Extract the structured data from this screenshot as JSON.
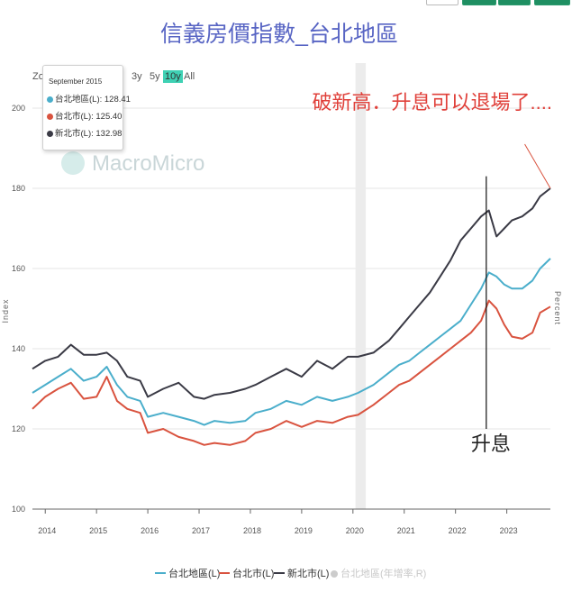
{
  "chart_data": {
    "type": "line",
    "title": "信義房價指數_台北地區",
    "ylabel": "Index",
    "y2label": "Percent",
    "ylim": [
      100,
      200
    ],
    "yticks": [
      100,
      120,
      140,
      160,
      180,
      200
    ],
    "xlim": [
      2013.75,
      2023.85
    ],
    "xticks": [
      "2014",
      "2015",
      "2016",
      "2017",
      "2018",
      "2019",
      "2020",
      "2021",
      "2022",
      "2023"
    ],
    "legend_position": "bottom",
    "highlight_band": [
      2020.05,
      2020.25
    ],
    "series": [
      {
        "name": "台北地區(L)",
        "color": "#4aaecb",
        "points": [
          [
            2013.75,
            129
          ],
          [
            2014.0,
            131
          ],
          [
            2014.25,
            133
          ],
          [
            2014.5,
            135
          ],
          [
            2014.75,
            132
          ],
          [
            2015.0,
            133
          ],
          [
            2015.2,
            135.5
          ],
          [
            2015.4,
            131
          ],
          [
            2015.6,
            128
          ],
          [
            2015.85,
            127
          ],
          [
            2016.0,
            123
          ],
          [
            2016.3,
            124
          ],
          [
            2016.6,
            123
          ],
          [
            2016.9,
            122
          ],
          [
            2017.1,
            121
          ],
          [
            2017.3,
            122
          ],
          [
            2017.6,
            121.5
          ],
          [
            2017.9,
            122
          ],
          [
            2018.1,
            124
          ],
          [
            2018.4,
            125
          ],
          [
            2018.7,
            127
          ],
          [
            2019.0,
            126
          ],
          [
            2019.3,
            128
          ],
          [
            2019.6,
            127
          ],
          [
            2019.9,
            128
          ],
          [
            2020.1,
            129
          ],
          [
            2020.4,
            131
          ],
          [
            2020.7,
            134
          ],
          [
            2020.9,
            136
          ],
          [
            2021.1,
            137
          ],
          [
            2021.3,
            139
          ],
          [
            2021.5,
            141
          ],
          [
            2021.7,
            143
          ],
          [
            2021.9,
            145
          ],
          [
            2022.1,
            147
          ],
          [
            2022.3,
            151
          ],
          [
            2022.5,
            155
          ],
          [
            2022.65,
            159
          ],
          [
            2022.8,
            158
          ],
          [
            2022.95,
            156
          ],
          [
            2023.1,
            155
          ],
          [
            2023.3,
            155
          ],
          [
            2023.5,
            157
          ],
          [
            2023.65,
            160
          ],
          [
            2023.85,
            162.5
          ]
        ]
      },
      {
        "name": "台北市(L)",
        "color": "#d9533f",
        "points": [
          [
            2013.75,
            125
          ],
          [
            2014.0,
            128
          ],
          [
            2014.25,
            130
          ],
          [
            2014.5,
            131.5
          ],
          [
            2014.75,
            127.5
          ],
          [
            2015.0,
            128
          ],
          [
            2015.2,
            133
          ],
          [
            2015.4,
            127
          ],
          [
            2015.6,
            125
          ],
          [
            2015.85,
            124
          ],
          [
            2016.0,
            119
          ],
          [
            2016.3,
            120
          ],
          [
            2016.6,
            118
          ],
          [
            2016.9,
            117
          ],
          [
            2017.1,
            116
          ],
          [
            2017.3,
            116.5
          ],
          [
            2017.6,
            116
          ],
          [
            2017.9,
            117
          ],
          [
            2018.1,
            119
          ],
          [
            2018.4,
            120
          ],
          [
            2018.7,
            122
          ],
          [
            2019.0,
            120.5
          ],
          [
            2019.3,
            122
          ],
          [
            2019.6,
            121.5
          ],
          [
            2019.9,
            123
          ],
          [
            2020.1,
            123.5
          ],
          [
            2020.4,
            126
          ],
          [
            2020.7,
            129
          ],
          [
            2020.9,
            131
          ],
          [
            2021.1,
            132
          ],
          [
            2021.3,
            134
          ],
          [
            2021.5,
            136
          ],
          [
            2021.7,
            138
          ],
          [
            2021.9,
            140
          ],
          [
            2022.1,
            142
          ],
          [
            2022.3,
            144
          ],
          [
            2022.5,
            147
          ],
          [
            2022.65,
            152
          ],
          [
            2022.8,
            150
          ],
          [
            2022.95,
            146
          ],
          [
            2023.1,
            143
          ],
          [
            2023.3,
            142.5
          ],
          [
            2023.5,
            144
          ],
          [
            2023.65,
            149
          ],
          [
            2023.85,
            150.5
          ]
        ]
      },
      {
        "name": "新北市(L)",
        "color": "#3a3a45",
        "points": [
          [
            2013.75,
            135
          ],
          [
            2014.0,
            137
          ],
          [
            2014.25,
            138
          ],
          [
            2014.5,
            141
          ],
          [
            2014.75,
            138.5
          ],
          [
            2015.0,
            138.5
          ],
          [
            2015.2,
            139
          ],
          [
            2015.4,
            137
          ],
          [
            2015.6,
            133
          ],
          [
            2015.85,
            132
          ],
          [
            2016.0,
            128
          ],
          [
            2016.3,
            130
          ],
          [
            2016.6,
            131.5
          ],
          [
            2016.9,
            128
          ],
          [
            2017.1,
            127.5
          ],
          [
            2017.3,
            128.5
          ],
          [
            2017.6,
            129
          ],
          [
            2017.9,
            130
          ],
          [
            2018.1,
            131
          ],
          [
            2018.4,
            133
          ],
          [
            2018.7,
            135
          ],
          [
            2019.0,
            133
          ],
          [
            2019.3,
            137
          ],
          [
            2019.6,
            135
          ],
          [
            2019.9,
            138
          ],
          [
            2020.1,
            138
          ],
          [
            2020.4,
            139
          ],
          [
            2020.7,
            142
          ],
          [
            2020.9,
            145
          ],
          [
            2021.1,
            148
          ],
          [
            2021.3,
            151
          ],
          [
            2021.5,
            154
          ],
          [
            2021.7,
            158
          ],
          [
            2021.9,
            162
          ],
          [
            2022.1,
            167
          ],
          [
            2022.3,
            170
          ],
          [
            2022.5,
            173
          ],
          [
            2022.65,
            174.5
          ],
          [
            2022.8,
            168
          ],
          [
            2022.95,
            170
          ],
          [
            2023.1,
            172
          ],
          [
            2023.3,
            173
          ],
          [
            2023.5,
            175
          ],
          [
            2023.65,
            178
          ],
          [
            2023.85,
            180
          ]
        ]
      }
    ],
    "inactive_series": [
      {
        "name": "台北地區(年增率,R)",
        "color": "#cccccc"
      }
    ],
    "annotations": [
      {
        "type": "text",
        "text": "破新高．升息可以退場了....",
        "color": "#e0403a"
      },
      {
        "type": "vline",
        "x": 2022.6,
        "label": "升息"
      },
      {
        "type": "line",
        "from": [
          2023.35,
          191
        ],
        "to": [
          2023.85,
          180
        ],
        "color": "#d9533f"
      }
    ]
  },
  "tooltip": {
    "date": "September 2015",
    "rows": [
      {
        "label": "台北地區(L): 128.41",
        "color": "#4aaecb"
      },
      {
        "label": "台北市(L): 125.40",
        "color": "#d9533f"
      },
      {
        "label": "新北市(L): 132.98",
        "color": "#3a3a45"
      }
    ]
  },
  "range_selector": {
    "zoom_label": "Zo",
    "buttons": [
      "3y",
      "5y",
      "10y",
      "All"
    ],
    "active": "10y"
  },
  "watermark": "MacroMicro"
}
